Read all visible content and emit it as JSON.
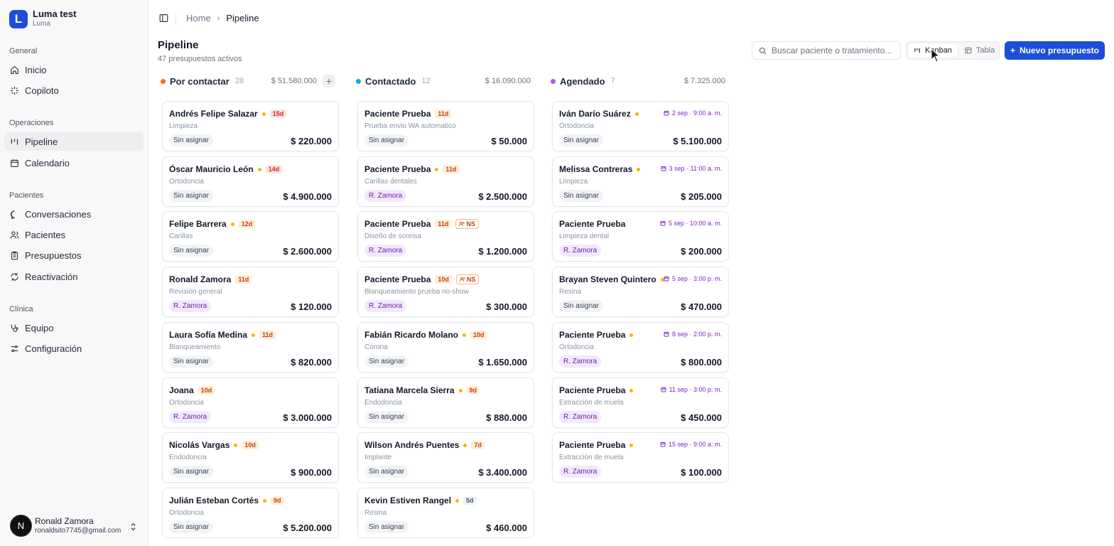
{
  "brand": {
    "initial": "L",
    "name": "Luma test",
    "sub": "Luma"
  },
  "nav": {
    "groups": [
      {
        "title": "General",
        "items": [
          {
            "label": "Inicio",
            "icon": "home-icon"
          },
          {
            "label": "Copiloto",
            "icon": "sparkle-icon"
          }
        ]
      },
      {
        "title": "Operaciones",
        "items": [
          {
            "label": "Pipeline",
            "icon": "kanban-icon",
            "active": true
          },
          {
            "label": "Calendario",
            "icon": "calendar-icon"
          }
        ]
      },
      {
        "title": "Pacientes",
        "items": [
          {
            "label": "Conversaciones",
            "icon": "chat-icon"
          },
          {
            "label": "Pacientes",
            "icon": "users-icon"
          },
          {
            "label": "Presupuestos",
            "icon": "clipboard-icon"
          },
          {
            "label": "Reactivación",
            "icon": "refresh-icon"
          }
        ]
      },
      {
        "title": "Clínica",
        "items": [
          {
            "label": "Equipo",
            "icon": "stethoscope-icon"
          },
          {
            "label": "Configuración",
            "icon": "settings-icon"
          }
        ]
      }
    ]
  },
  "user": {
    "initial": "N",
    "name": "Ronald Zamora",
    "email": "ronaldsito7745@gmail.com"
  },
  "breadcrumb": {
    "home": "Home",
    "current": "Pipeline"
  },
  "page": {
    "title": "Pipeline",
    "subtitle": "47 presupuestos activos"
  },
  "search": {
    "placeholder": "Buscar paciente o tratamiento..."
  },
  "view_toggle": {
    "kanban": "Kanban",
    "table": "Tabla"
  },
  "new_button": {
    "label": "Nuevo presupuesto"
  },
  "colors": {
    "accent": "#1d4ed8",
    "orange": "#f97316",
    "blue": "#0ea5e9",
    "purple": "#a855f7"
  },
  "columns": [
    {
      "title": "Por contactar",
      "count": "28",
      "total": "$ 51.580.000",
      "dot": "#f97316",
      "add": "+",
      "cards": [
        {
          "name": "Andrés Felipe Salazar",
          "dot": true,
          "age": "15d",
          "age_style": "red",
          "treatment": "Limpieza",
          "assignee": "Sin asignar",
          "amount": "$ 220.000"
        },
        {
          "name": "Óscar Mauricio León",
          "dot": true,
          "age": "14d",
          "age_style": "red",
          "treatment": "Ortodoncia",
          "assignee": "Sin asignar",
          "amount": "$ 4.900.000"
        },
        {
          "name": "Felipe Barrera",
          "dot": true,
          "age": "12d",
          "age_style": "orange",
          "treatment": "Carillas",
          "assignee": "Sin asignar",
          "amount": "$ 2.600.000"
        },
        {
          "name": "Ronald Zamora",
          "dot": false,
          "age": "11d",
          "age_style": "orange",
          "treatment": "Revisión general",
          "assignee": "R. Zamora",
          "amount": "$ 120.000"
        },
        {
          "name": "Laura Sofía Medina",
          "dot": true,
          "age": "11d",
          "age_style": "orange",
          "treatment": "Blanqueamiento",
          "assignee": "Sin asignar",
          "amount": "$ 820.000"
        },
        {
          "name": "Joana",
          "dot": false,
          "age": "10d",
          "age_style": "orange",
          "treatment": "Ortodoncia",
          "assignee": "R. Zamora",
          "amount": "$ 3.000.000"
        },
        {
          "name": "Nicolás Vargas",
          "dot": true,
          "age": "10d",
          "age_style": "orange",
          "treatment": "Endodoncia",
          "assignee": "Sin asignar",
          "amount": "$ 900.000"
        },
        {
          "name": "Julián Esteban Cortés",
          "dot": true,
          "age": "9d",
          "age_style": "orange",
          "treatment": "Ortodoncia",
          "assignee": "Sin asignar",
          "amount": "$ 5.200.000"
        }
      ]
    },
    {
      "title": "Contactado",
      "count": "12",
      "total": "$ 16.090.000",
      "dot": "#0ea5e9",
      "cards": [
        {
          "name": "Paciente Prueba",
          "dot": false,
          "age": "11d",
          "age_style": "orange",
          "treatment": "Prueba envio WA automatico",
          "assignee": "Sin asignar",
          "amount": "$ 50.000"
        },
        {
          "name": "Paciente Prueba",
          "dot": true,
          "age": "11d",
          "age_style": "orange",
          "treatment": "Carillas dentales",
          "assignee": "R. Zamora",
          "amount": "$ 2.500.000"
        },
        {
          "name": "Paciente Prueba",
          "dot": false,
          "age": "11d",
          "age_style": "orange",
          "ns": "NS",
          "treatment": "Diseño de sonrisa",
          "assignee": "R. Zamora",
          "amount": "$ 1.200.000"
        },
        {
          "name": "Paciente Prueba",
          "dot": false,
          "age": "10d",
          "age_style": "orange",
          "ns": "NS",
          "treatment": "Blanqueamiento prueba no-show",
          "assignee": "R. Zamora",
          "amount": "$ 300.000"
        },
        {
          "name": "Fabián Ricardo Molano",
          "dot": true,
          "age": "10d",
          "age_style": "orange",
          "treatment": "Corona",
          "assignee": "Sin asignar",
          "amount": "$ 1.650.000"
        },
        {
          "name": "Tatiana Marcela Sierra",
          "dot": true,
          "age": "9d",
          "age_style": "orange",
          "treatment": "Endodoncia",
          "assignee": "Sin asignar",
          "amount": "$ 880.000"
        },
        {
          "name": "Wilson Andrés Puentes",
          "dot": true,
          "age": "7d",
          "age_style": "orange",
          "treatment": "Implante",
          "assignee": "Sin asignar",
          "amount": "$ 3.400.000"
        },
        {
          "name": "Kevin Estiven Rangel",
          "dot": true,
          "age": "5d",
          "age_style": "blue",
          "treatment": "Resina",
          "assignee": "Sin asignar",
          "amount": "$ 460.000"
        }
      ]
    },
    {
      "title": "Agendado",
      "count": "7",
      "total": "$ 7.325.000",
      "dot": "#a855f7",
      "cards": [
        {
          "name": "Iván Darío Suárez",
          "dot": true,
          "date": "2 sep · 9:00 a. m.",
          "treatment": "Ortodoncia",
          "assignee": "Sin asignar",
          "amount": "$ 5.100.000"
        },
        {
          "name": "Melissa Contreras",
          "dot": true,
          "date": "3 sep · 11:00 a. m.",
          "treatment": "Limpieza",
          "assignee": "Sin asignar",
          "amount": "$ 205.000"
        },
        {
          "name": "Paciente Prueba",
          "dot": false,
          "date": "5 sep · 10:00 a. m.",
          "treatment": "Limpieza dental",
          "assignee": "R. Zamora",
          "amount": "$ 200.000"
        },
        {
          "name": "Brayan Steven Quintero",
          "dot": true,
          "date": "5 sep · 3:00 p. m.",
          "treatment": "Resina",
          "assignee": "Sin asignar",
          "amount": "$ 470.000"
        },
        {
          "name": "Paciente Prueba",
          "dot": true,
          "date": "8 sep · 2:00 p. m.",
          "treatment": "Ortodoncia",
          "assignee": "R. Zamora",
          "amount": "$ 800.000"
        },
        {
          "name": "Paciente Prueba",
          "dot": true,
          "date": "11 sep · 3:00 p. m.",
          "treatment": "Extracción de muela",
          "assignee": "R. Zamora",
          "amount": "$ 450.000"
        },
        {
          "name": "Paciente Prueba",
          "dot": true,
          "date": "15 sep · 9:00 a. m.",
          "treatment": "Extracción de muela",
          "assignee": "R. Zamora",
          "amount": "$ 100.000"
        }
      ]
    }
  ]
}
